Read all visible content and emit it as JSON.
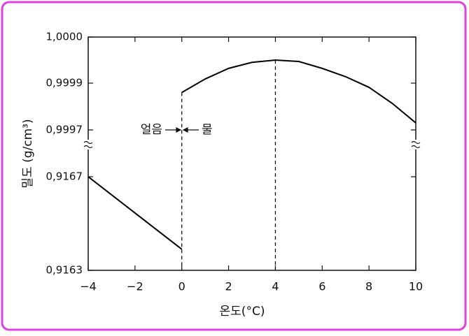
{
  "chart_data": {
    "type": "line",
    "xlabel": "온도(°C)",
    "ylabel": "밀도 (g/cm³)",
    "xlim": [
      -4,
      10
    ],
    "xticks": [
      {
        "value": -4,
        "label": "−4"
      },
      {
        "value": -2,
        "label": "−2"
      },
      0,
      2,
      4,
      6,
      8,
      10
    ],
    "ylim": [
      0.9163,
      1.0
    ],
    "yticks": [
      {
        "value": 1.0,
        "label": "1,0000"
      },
      {
        "value": 0.9999,
        "label": "0,9999"
      },
      {
        "value": 0.9997,
        "label": "0,9997"
      },
      {
        "value": 0.9167,
        "label": "0,9167"
      },
      {
        "value": 0.9163,
        "label": "0,9163"
      }
    ],
    "series": [
      {
        "color": "#000000",
        "x": [
          -4,
          0
        ],
        "values": [
          0.91678,
          0.91639
        ]
      },
      {
        "color": "#000000",
        "x": [
          0,
          1,
          2,
          3,
          4,
          5,
          6,
          7,
          8,
          9,
          10
        ],
        "values": [
          0.99986,
          0.999909,
          0.999932,
          0.999945,
          0.99995,
          0.999947,
          0.999932,
          0.999914,
          0.999882,
          0.999813,
          0.99973
        ]
      }
    ],
    "vlines": [
      0,
      4
    ],
    "annotations": [
      "얼음",
      "물"
    ]
  }
}
